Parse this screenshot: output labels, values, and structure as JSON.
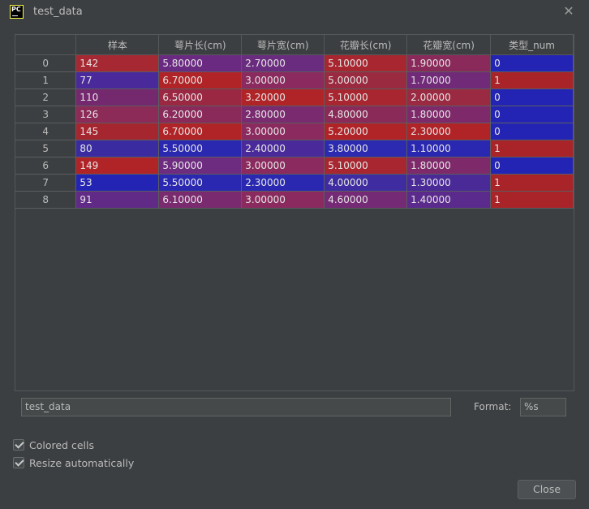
{
  "window": {
    "title": "test_data",
    "icon": "pycharm-logo",
    "icon_text": "PC"
  },
  "table": {
    "columns": [
      "样本",
      "萼片长(cm)",
      "萼片宽(cm)",
      "花瓣长(cm)",
      "花瓣宽(cm)",
      "类型_num"
    ],
    "rows": [
      {
        "index": "0",
        "cells": [
          "142",
          "5.80000",
          "2.70000",
          "5.10000",
          "1.90000",
          "0"
        ]
      },
      {
        "index": "1",
        "cells": [
          "77",
          "6.70000",
          "3.00000",
          "5.00000",
          "1.70000",
          "1"
        ]
      },
      {
        "index": "2",
        "cells": [
          "110",
          "6.50000",
          "3.20000",
          "5.10000",
          "2.00000",
          "0"
        ]
      },
      {
        "index": "3",
        "cells": [
          "126",
          "6.20000",
          "2.80000",
          "4.80000",
          "1.80000",
          "0"
        ]
      },
      {
        "index": "4",
        "cells": [
          "145",
          "6.70000",
          "3.00000",
          "5.20000",
          "2.30000",
          "0"
        ]
      },
      {
        "index": "5",
        "cells": [
          "80",
          "5.50000",
          "2.40000",
          "3.80000",
          "1.10000",
          "1"
        ]
      },
      {
        "index": "6",
        "cells": [
          "149",
          "5.90000",
          "3.00000",
          "5.10000",
          "1.80000",
          "0"
        ]
      },
      {
        "index": "7",
        "cells": [
          "53",
          "5.50000",
          "2.30000",
          "4.00000",
          "1.30000",
          "1"
        ]
      },
      {
        "index": "8",
        "cells": [
          "91",
          "6.10000",
          "3.00000",
          "4.60000",
          "1.40000",
          "1"
        ]
      }
    ],
    "cell_colors": [
      [
        "#a62832",
        "#6b2a82",
        "#6a2c7e",
        "#a82630",
        "#8a2a5a",
        "#2424b4"
      ],
      [
        "#4a2a9a",
        "#b02428",
        "#8a2a5e",
        "#9a2a40",
        "#702a78",
        "#a82428"
      ],
      [
        "#74286e",
        "#9a2842",
        "#b02428",
        "#a82630",
        "#9a2a42",
        "#2424b4"
      ],
      [
        "#8c2a58",
        "#8a2a5a",
        "#7a2a6e",
        "#8a2a58",
        "#7e2a6a",
        "#2424b4"
      ],
      [
        "#a62630",
        "#b02428",
        "#8a2a5e",
        "#b02428",
        "#b02428",
        "#2424b4"
      ],
      [
        "#3a2ca0",
        "#2a28b0",
        "#4a2a9a",
        "#2c2ab0",
        "#2a28b0",
        "#a82428"
      ],
      [
        "#b02428",
        "#6e2c80",
        "#8a2a5e",
        "#a82630",
        "#7e2a6a",
        "#2424b4"
      ],
      [
        "#2424b4",
        "#2a28b0",
        "#2a28b0",
        "#3e2ca0",
        "#4a2a96",
        "#a82428"
      ],
      [
        "#602a86",
        "#7a2a6e",
        "#8a2a5e",
        "#742a74",
        "#5a2a8c",
        "#a82428"
      ]
    ]
  },
  "name_field": {
    "value": "test_data"
  },
  "format": {
    "label": "Format:",
    "value": "%s"
  },
  "options": [
    {
      "label": "Colored cells",
      "checked": true
    },
    {
      "label": "Resize automatically",
      "checked": true
    }
  ],
  "close_button": {
    "label": "Close"
  }
}
